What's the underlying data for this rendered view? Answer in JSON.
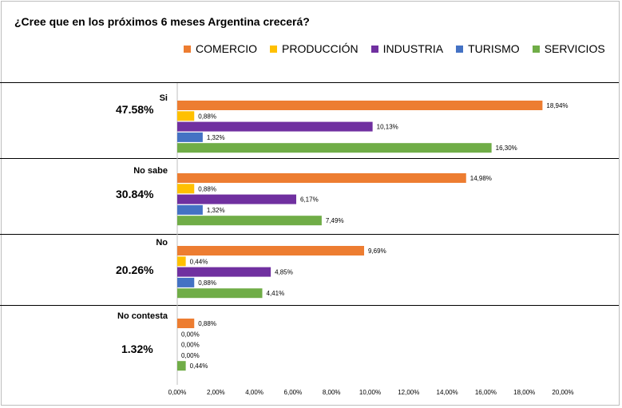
{
  "chart_data": {
    "type": "bar",
    "orientation": "horizontal",
    "title": "¿Cree que en los próximos 6 meses Argentina crecerá?",
    "legend_position": "top-right",
    "series": [
      {
        "name": "COMERCIO",
        "color": "#ED7D31"
      },
      {
        "name": "PRODUCCIÓN",
        "color": "#FFC000"
      },
      {
        "name": "INDUSTRIA",
        "color": "#7030A0"
      },
      {
        "name": "TURISMO",
        "color": "#4472C4"
      },
      {
        "name": "SERVICIOS",
        "color": "#70AD47"
      }
    ],
    "categories": [
      {
        "label": "Si",
        "total": "47.58%",
        "values": [
          18.94,
          0.88,
          10.13,
          1.32,
          16.3
        ],
        "value_labels": [
          "18,94%",
          "0,88%",
          "10,13%",
          "1,32%",
          "16,30%"
        ]
      },
      {
        "label": "No sabe",
        "total": "30.84%",
        "values": [
          14.98,
          0.88,
          6.17,
          1.32,
          7.49
        ],
        "value_labels": [
          "14,98%",
          "0,88%",
          "6,17%",
          "1,32%",
          "7,49%"
        ]
      },
      {
        "label": "No",
        "total": "20.26%",
        "values": [
          9.69,
          0.44,
          4.85,
          0.88,
          4.41
        ],
        "value_labels": [
          "9,69%",
          "0,44%",
          "4,85%",
          "0,88%",
          "4,41%"
        ]
      },
      {
        "label": "No contesta",
        "total": "1.32%",
        "values": [
          0.88,
          0.0,
          0.0,
          0.0,
          0.44
        ],
        "value_labels": [
          "0,88%",
          "0,00%",
          "0,00%",
          "0,00%",
          "0,44%"
        ]
      }
    ],
    "xlim": [
      0,
      20
    ],
    "x_ticks": [
      0,
      2,
      4,
      6,
      8,
      10,
      12,
      14,
      16,
      18,
      20
    ],
    "x_tick_labels": [
      "0,00%",
      "2,00%",
      "4,00%",
      "6,00%",
      "8,00%",
      "10,00%",
      "12,00%",
      "14,00%",
      "16,00%",
      "18,00%",
      "20,00%"
    ],
    "grid": false
  }
}
